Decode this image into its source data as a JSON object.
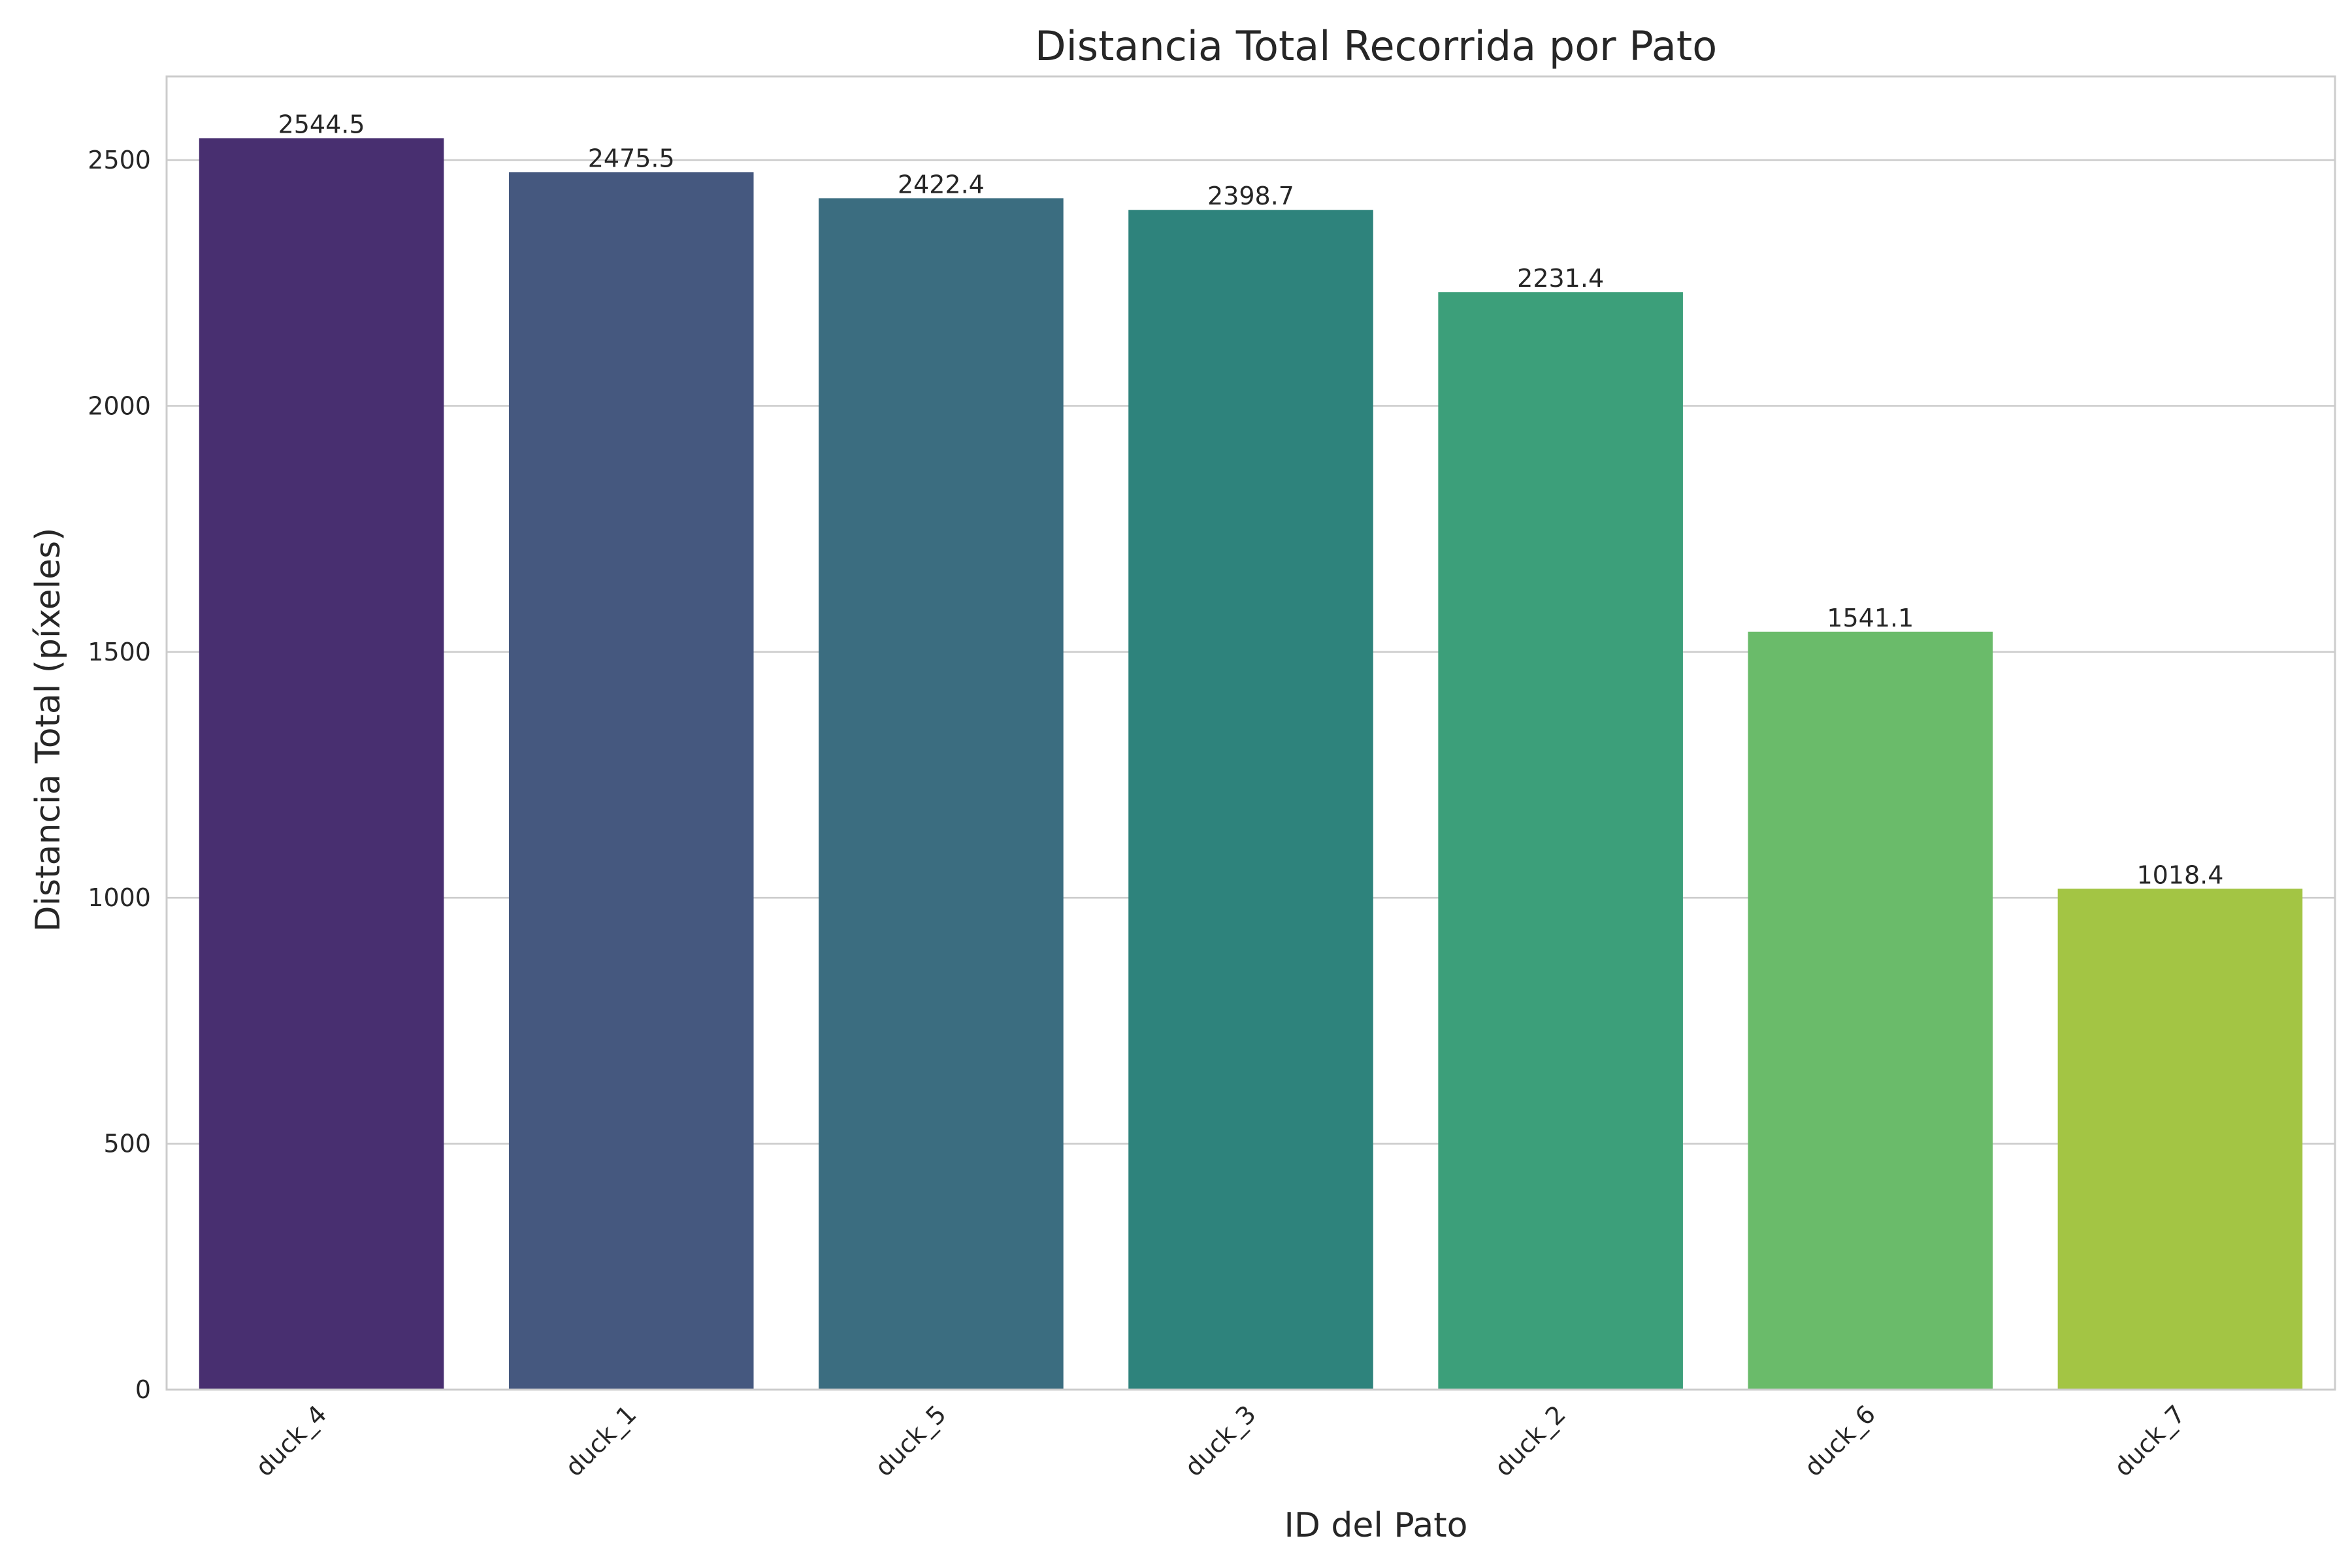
{
  "chart_data": {
    "type": "bar",
    "title": "Distancia Total Recorrida por Pato",
    "xlabel": "ID del Pato",
    "ylabel": "Distancia Total (píxeles)",
    "categories": [
      "duck_4",
      "duck_1",
      "duck_5",
      "duck_3",
      "duck_2",
      "duck_6",
      "duck_7"
    ],
    "values": [
      2544.5,
      2475.5,
      2422.4,
      2398.7,
      2231.4,
      1541.1,
      1018.4
    ],
    "value_labels": [
      "2544.5",
      "2475.5",
      "2422.4",
      "2398.7",
      "2231.4",
      "1541.1",
      "1018.4"
    ],
    "ylim": [
      0,
      2670
    ],
    "yticks": [
      0,
      500,
      1000,
      1500,
      2000,
      2500
    ],
    "ytick_labels": [
      "0",
      "500",
      "1000",
      "1500",
      "2000",
      "2500"
    ],
    "grid": "horizontal",
    "colors": [
      "#482f70",
      "#45587f",
      "#3b6d80",
      "#2e837c",
      "#3c9f7a",
      "#6abb6a",
      "#a3c544"
    ]
  }
}
